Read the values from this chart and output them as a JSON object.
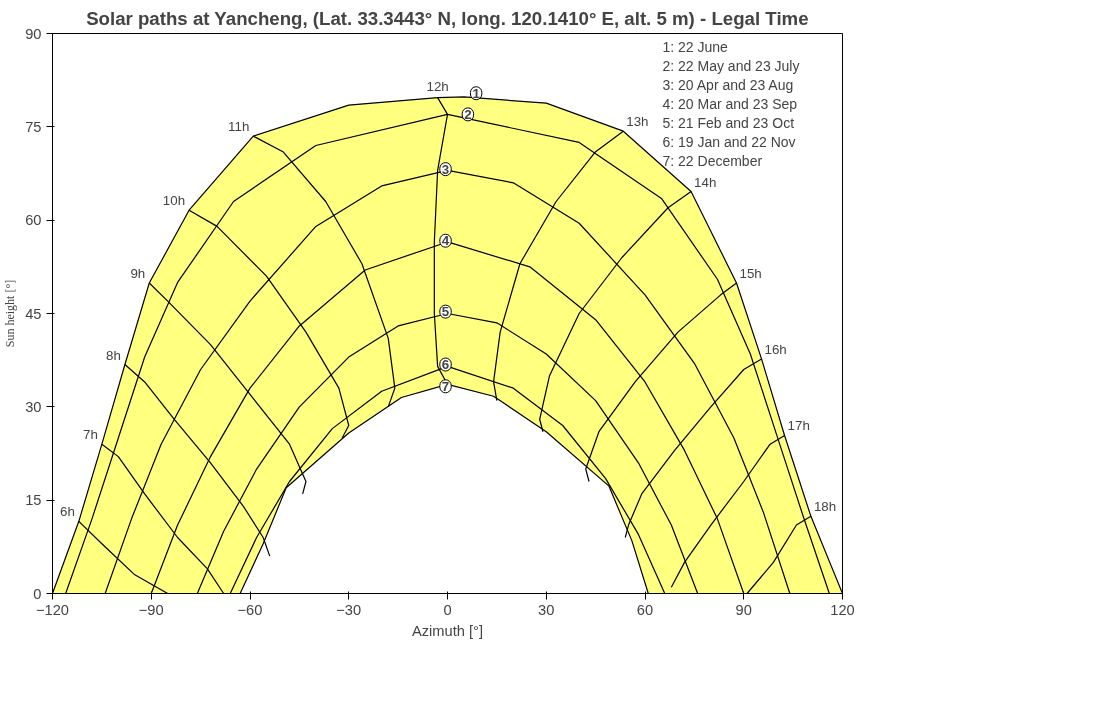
{
  "chart_data": {
    "type": "line",
    "title": "Solar paths at Yancheng, (Lat. 33.3443° N, long. 120.1410° E, alt. 5 m) - Legal Time",
    "xlabel": "Azimuth [°]",
    "ylabel": "Sun height [°]",
    "xlim": [
      -120,
      120
    ],
    "xticks": [
      -120,
      -90,
      -60,
      -30,
      0,
      30,
      60,
      90,
      120
    ],
    "ylim": [
      0,
      90
    ],
    "yticks": [
      0,
      15,
      30,
      45,
      60,
      75,
      90
    ],
    "grid": false,
    "marker": "none",
    "line_style": "solid",
    "series": [
      {
        "color": "#000000",
        "x": [
          -120,
          -112,
          -105,
          -98,
          -90.6,
          -78.5,
          -59,
          -30,
          -3,
          5,
          30,
          53.4,
          74,
          87.8,
          95.4,
          102.4,
          110.4,
          120
        ],
        "values": [
          0,
          11.6,
          24,
          36.8,
          49.9,
          61.6,
          73.5,
          78.5,
          79.7,
          79.8,
          78.8,
          74.3,
          64.6,
          49.9,
          37.7,
          25.4,
          12.4,
          0
        ]
      },
      {
        "color": "#000000",
        "x": [
          -116,
          -108,
          -100,
          -92,
          -82,
          -65,
          -40,
          0,
          40,
          65,
          82,
          92,
          100,
          108,
          116
        ],
        "values": [
          0,
          12,
          25,
          38,
          50,
          63,
          72,
          77,
          72.5,
          63.5,
          50.5,
          38.5,
          25.5,
          12.5,
          0
        ]
      },
      {
        "color": "#000000",
        "x": [
          -104,
          -96,
          -87,
          -75,
          -60,
          -40,
          -20,
          0,
          20,
          40,
          60,
          75,
          87,
          96,
          104
        ],
        "values": [
          0,
          12,
          24,
          36,
          47,
          59,
          65.5,
          68,
          66,
          59.5,
          48,
          37,
          25,
          13,
          0
        ]
      },
      {
        "color": "#000000",
        "x": [
          -90,
          -82,
          -72,
          -60,
          -45,
          -25,
          0,
          25,
          45,
          60,
          72,
          82,
          90
        ],
        "values": [
          0,
          11,
          22,
          33,
          43,
          52,
          56.5,
          52.5,
          44,
          34,
          23,
          12,
          0
        ]
      },
      {
        "color": "#000000",
        "x": [
          -76,
          -68,
          -58,
          -45,
          -30,
          -15,
          0,
          15,
          30,
          45,
          58,
          68,
          76
        ],
        "values": [
          0,
          10,
          20,
          30,
          38,
          43,
          45,
          43.5,
          38.5,
          31,
          21,
          11,
          0
        ]
      },
      {
        "color": "#000000",
        "x": [
          -66,
          -58,
          -48,
          -35,
          -20,
          0,
          20,
          35,
          48,
          58,
          66
        ],
        "values": [
          0,
          9,
          18,
          26.5,
          32.5,
          36.5,
          33,
          27,
          18.5,
          9.5,
          0
        ]
      },
      {
        "color": "#000000",
        "x": [
          -63,
          -56,
          -49,
          -30,
          -14,
          0,
          14,
          30,
          49,
          56,
          61
        ],
        "values": [
          0,
          8,
          17,
          25.8,
          31.5,
          33.6,
          31.7,
          26,
          17.3,
          8.5,
          0
        ]
      },
      {
        "color": "#000000",
        "x": [
          -112,
          -105,
          -95,
          -85
        ],
        "values": [
          11.6,
          8,
          3,
          0
        ]
      },
      {
        "color": "#000000",
        "x": [
          -105,
          -100,
          -92,
          -82,
          -73,
          -68
        ],
        "values": [
          24,
          22,
          16,
          9,
          4,
          0
        ]
      },
      {
        "color": "#000000",
        "x": [
          -98,
          -92,
          -83,
          -72,
          -62,
          -56,
          -54
        ],
        "values": [
          36.8,
          34,
          28,
          21,
          14,
          9,
          6
        ]
      },
      {
        "color": "#000000",
        "x": [
          -90.6,
          -85,
          -72,
          -60,
          -48,
          -43,
          -44
        ],
        "values": [
          49.9,
          47,
          40,
          32,
          24,
          18,
          16
        ]
      },
      {
        "color": "#000000",
        "x": [
          -78.5,
          -70,
          -55,
          -43,
          -33,
          -30,
          -32
        ],
        "values": [
          61.6,
          59,
          51,
          42,
          33,
          27,
          25
        ]
      },
      {
        "color": "#000000",
        "x": [
          -59,
          -50,
          -37,
          -26,
          -18,
          -16,
          -18
        ],
        "values": [
          73.5,
          71,
          63,
          53,
          41,
          33,
          30
        ]
      },
      {
        "color": "#000000",
        "x": [
          -3,
          0,
          -3,
          -4,
          -4,
          -3,
          0
        ],
        "values": [
          79.7,
          77,
          68,
          56.5,
          45,
          36.5,
          33.6
        ]
      },
      {
        "color": "#000000",
        "x": [
          53.4,
          45,
          33,
          22,
          16,
          14,
          15
        ],
        "values": [
          74.3,
          71,
          63,
          53,
          42,
          34,
          31
        ]
      },
      {
        "color": "#000000",
        "x": [
          74,
          67,
          53,
          40,
          31,
          28,
          29
        ],
        "values": [
          64.6,
          62,
          54,
          45,
          35,
          28,
          26
        ]
      },
      {
        "color": "#000000",
        "x": [
          87.8,
          83,
          70,
          57,
          46,
          42,
          43
        ],
        "values": [
          49.9,
          48,
          42,
          34,
          26,
          20,
          18
        ]
      },
      {
        "color": "#000000",
        "x": [
          95.4,
          90,
          80,
          69,
          59,
          55,
          54
        ],
        "values": [
          37.7,
          36,
          30,
          23,
          16,
          11,
          9
        ]
      },
      {
        "color": "#000000",
        "x": [
          102.4,
          98,
          90,
          80,
          72,
          68
        ],
        "values": [
          25.4,
          24,
          18,
          11,
          5,
          1
        ]
      },
      {
        "color": "#000000",
        "x": [
          110.4,
          106,
          99,
          91
        ],
        "values": [
          12.4,
          11,
          5,
          0
        ]
      }
    ],
    "annotations": [
      "1: 22 June",
      "2: 22 May and 23 July",
      "3: 20 Apr and 23 Aug",
      "4: 20 Mar and 23 Sep",
      "5: 21 Feb and 23 Oct",
      "6: 19 Jan and 22 Nov",
      "7: 22 December",
      {
        "text": "6h",
        "x": -112,
        "y": 11.6
      },
      {
        "text": "7h",
        "x": -105,
        "y": 24
      },
      {
        "text": "8h",
        "x": -98,
        "y": 36.8
      },
      {
        "text": "9h",
        "x": -90.6,
        "y": 49.9
      },
      {
        "text": "10h",
        "x": -78.5,
        "y": 61.6
      },
      {
        "text": "11h",
        "x": -59,
        "y": 73.5
      },
      {
        "text": "12h",
        "x": -3,
        "y": 79.7
      },
      {
        "text": "13h",
        "x": 53.4,
        "y": 74.3
      },
      {
        "text": "14h",
        "x": 74,
        "y": 64.6
      },
      {
        "text": "15h",
        "x": 87.8,
        "y": 49.9
      },
      {
        "text": "16h",
        "x": 95.4,
        "y": 37.7
      },
      {
        "text": "17h",
        "x": 102.4,
        "y": 25.4
      },
      {
        "text": "18h",
        "x": 110.4,
        "y": 12.4
      },
      {
        "text": "1",
        "x": 8.7,
        "y": 80.4
      },
      {
        "text": "2",
        "x": 6.2,
        "y": 77
      },
      {
        "text": "3",
        "x": -0.6,
        "y": 68.2
      },
      {
        "text": "4",
        "x": -0.6,
        "y": 56.7
      },
      {
        "text": "5",
        "x": -0.6,
        "y": 45.3
      },
      {
        "text": "6",
        "x": -0.6,
        "y": 36.8
      },
      {
        "text": "7",
        "x": -0.6,
        "y": 33.3
      }
    ]
  }
}
